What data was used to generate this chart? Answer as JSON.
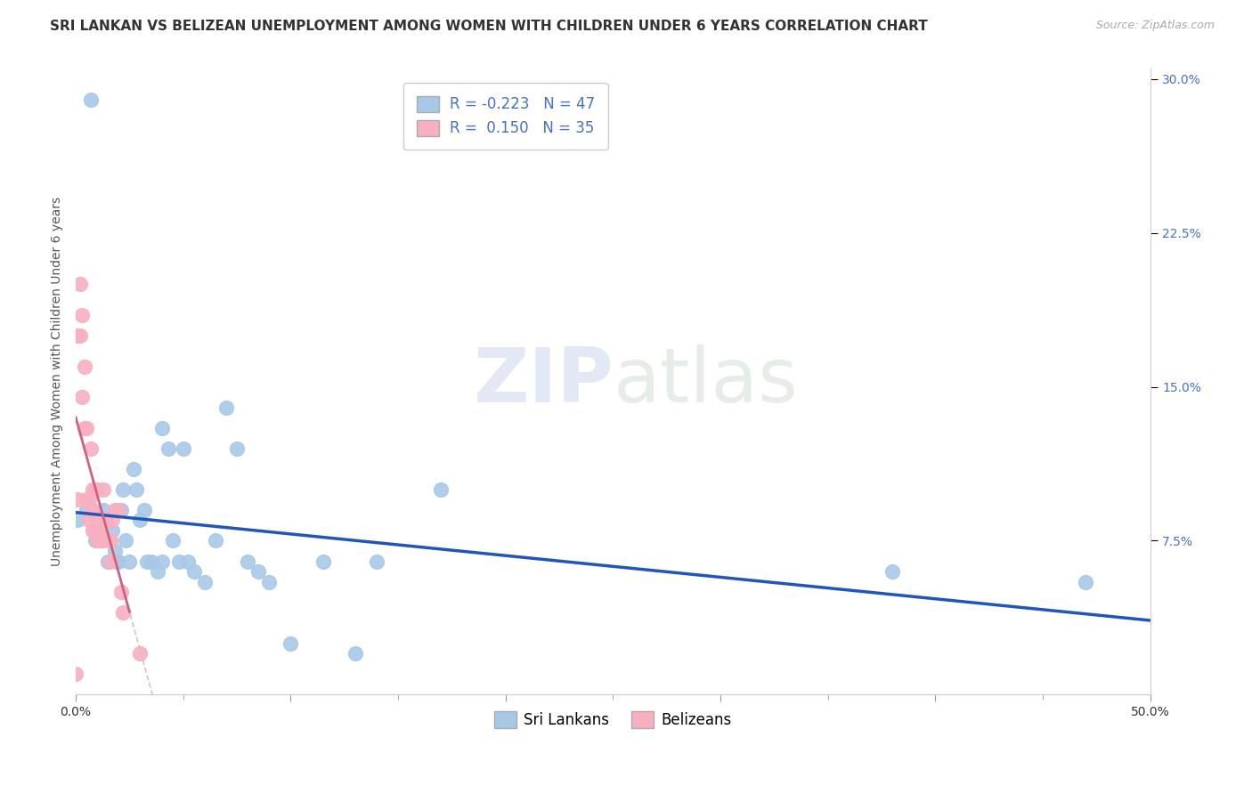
{
  "title": "SRI LANKAN VS BELIZEAN UNEMPLOYMENT AMONG WOMEN WITH CHILDREN UNDER 6 YEARS CORRELATION CHART",
  "source": "Source: ZipAtlas.com",
  "ylabel": "Unemployment Among Women with Children Under 6 years",
  "watermark": "ZIPatlas",
  "sri_lankans": {
    "label": "Sri Lankans",
    "color": "#a8c8e8",
    "line_color": "#2255bb",
    "R": -0.223,
    "N": 47,
    "x": [
      0.001,
      0.005,
      0.007,
      0.009,
      0.01,
      0.011,
      0.012,
      0.013,
      0.015,
      0.016,
      0.017,
      0.018,
      0.019,
      0.02,
      0.021,
      0.022,
      0.023,
      0.025,
      0.027,
      0.028,
      0.03,
      0.032,
      0.033,
      0.035,
      0.038,
      0.04,
      0.04,
      0.043,
      0.045,
      0.048,
      0.05,
      0.052,
      0.055,
      0.06,
      0.065,
      0.07,
      0.075,
      0.08,
      0.085,
      0.09,
      0.1,
      0.115,
      0.13,
      0.14,
      0.17,
      0.38,
      0.47
    ],
    "y": [
      0.085,
      0.09,
      0.29,
      0.075,
      0.1,
      0.08,
      0.075,
      0.09,
      0.065,
      0.075,
      0.08,
      0.07,
      0.065,
      0.065,
      0.09,
      0.1,
      0.075,
      0.065,
      0.11,
      0.1,
      0.085,
      0.09,
      0.065,
      0.065,
      0.06,
      0.065,
      0.13,
      0.12,
      0.075,
      0.065,
      0.12,
      0.065,
      0.06,
      0.055,
      0.075,
      0.14,
      0.12,
      0.065,
      0.06,
      0.055,
      0.025,
      0.065,
      0.02,
      0.065,
      0.1,
      0.06,
      0.055
    ]
  },
  "belizeans": {
    "label": "Belizeans",
    "color": "#f8b0c0",
    "line_color": "#d06080",
    "R": 0.15,
    "N": 35,
    "x": [
      0.0,
      0.001,
      0.001,
      0.002,
      0.002,
      0.003,
      0.003,
      0.004,
      0.004,
      0.005,
      0.005,
      0.006,
      0.006,
      0.007,
      0.007,
      0.008,
      0.008,
      0.008,
      0.009,
      0.009,
      0.01,
      0.01,
      0.011,
      0.012,
      0.013,
      0.014,
      0.015,
      0.016,
      0.016,
      0.017,
      0.018,
      0.02,
      0.021,
      0.022,
      0.03
    ],
    "y": [
      0.01,
      0.175,
      0.095,
      0.2,
      0.175,
      0.145,
      0.185,
      0.13,
      0.16,
      0.13,
      0.095,
      0.095,
      0.085,
      0.09,
      0.12,
      0.08,
      0.09,
      0.1,
      0.08,
      0.1,
      0.075,
      0.085,
      0.08,
      0.075,
      0.1,
      0.085,
      0.075,
      0.065,
      0.075,
      0.085,
      0.09,
      0.09,
      0.05,
      0.04,
      0.02
    ]
  },
  "xlim": [
    0.0,
    0.5
  ],
  "ylim": [
    0.0,
    0.305
  ],
  "xtick_major": [
    0.0,
    0.5
  ],
  "xtick_minor_step": 0.05,
  "xticklabels_edge": [
    "0.0%",
    "50.0%"
  ],
  "yticks_right": [
    0.075,
    0.15,
    0.225,
    0.3
  ],
  "yticklabels_right": [
    "7.5%",
    "15.0%",
    "22.5%",
    "30.0%"
  ],
  "background_color": "#ffffff",
  "title_fontsize": 11,
  "source_fontsize": 9,
  "axis_label_fontsize": 10,
  "tick_fontsize": 10,
  "legend_fontsize": 12,
  "grid_color": "#dddddd",
  "grid_style": "--"
}
